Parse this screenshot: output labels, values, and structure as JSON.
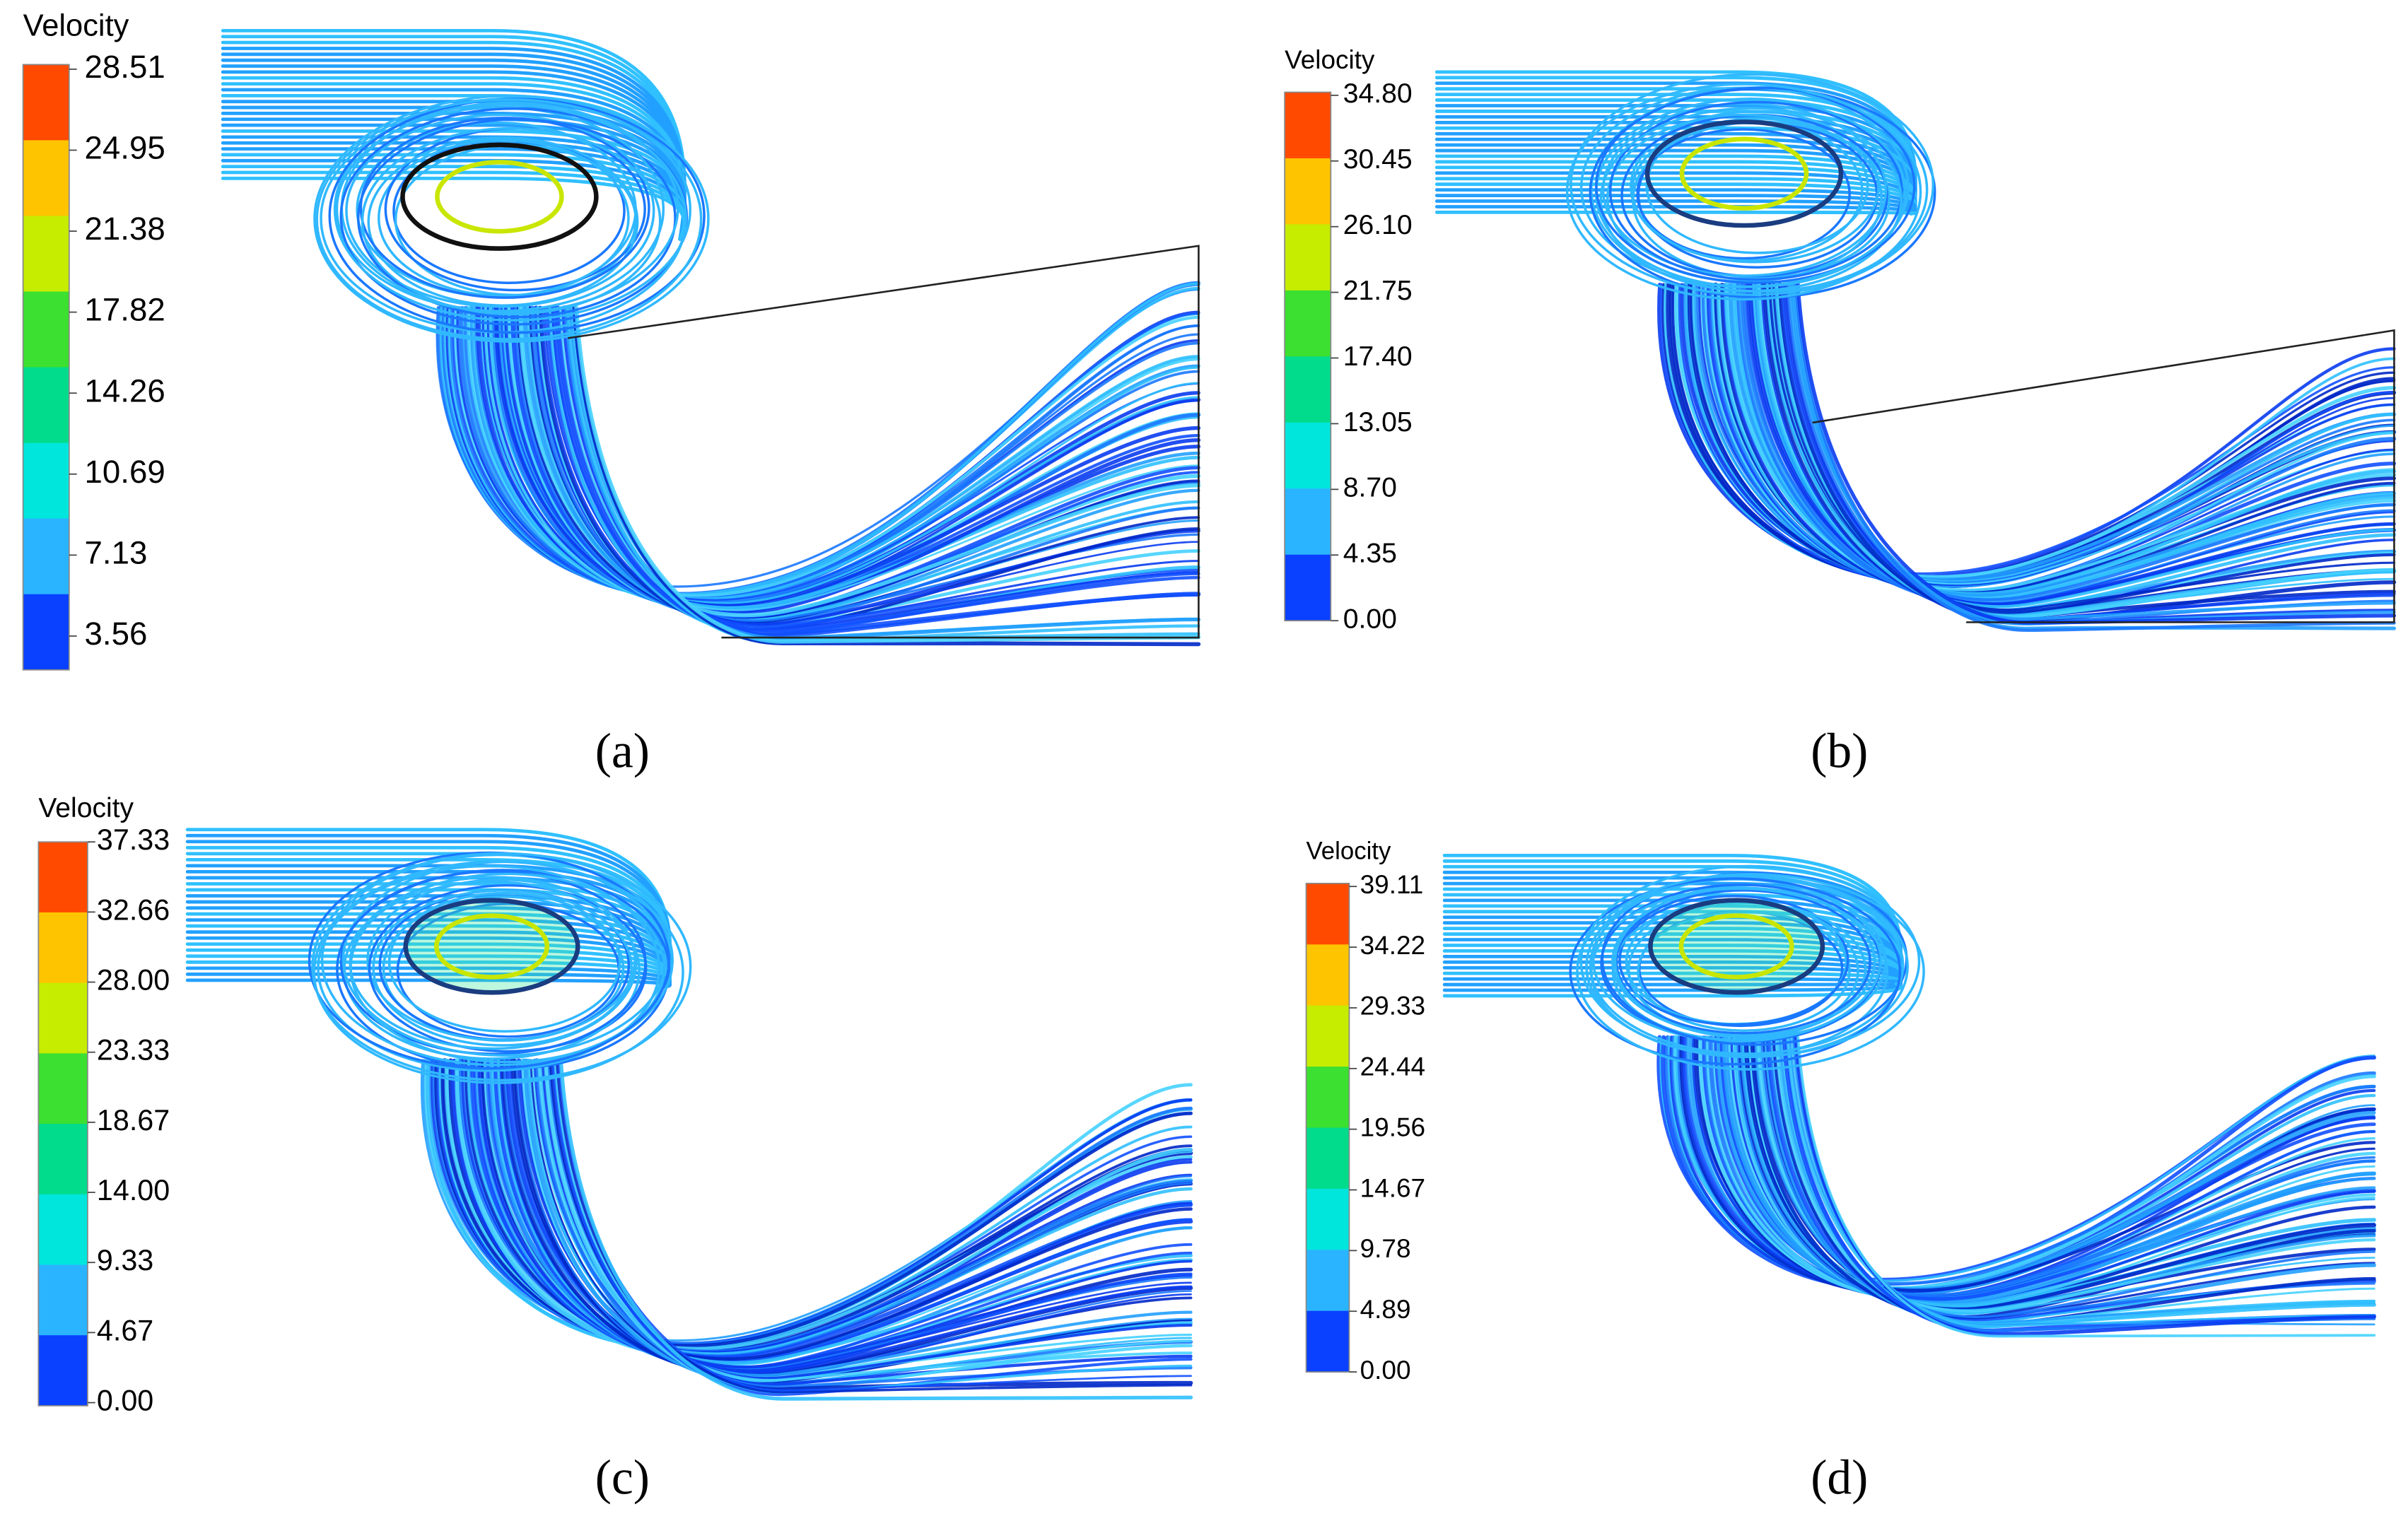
{
  "panels": [
    {
      "label": "(a)",
      "legend": {
        "title": "Velocity",
        "ticks": [
          "28.51",
          "24.95",
          "21.38",
          "17.82",
          "14.26",
          "10.69",
          "7.13",
          "3.56"
        ]
      }
    },
    {
      "label": "(b)",
      "legend": {
        "title": "Velocity",
        "ticks": [
          "34.80",
          "30.45",
          "26.10",
          "21.75",
          "17.40",
          "13.05",
          "8.70",
          "4.35",
          "0.00"
        ]
      }
    },
    {
      "label": "(c)",
      "legend": {
        "title": "Velocity",
        "ticks": [
          "37.33",
          "32.66",
          "28.00",
          "23.33",
          "18.67",
          "14.00",
          "9.33",
          "4.67",
          "0.00"
        ]
      }
    },
    {
      "label": "(d)",
      "legend": {
        "title": "Velocity",
        "ticks": [
          "39.11",
          "34.22",
          "29.33",
          "24.44",
          "19.56",
          "14.67",
          "9.78",
          "4.89",
          "0.00"
        ]
      }
    }
  ]
}
